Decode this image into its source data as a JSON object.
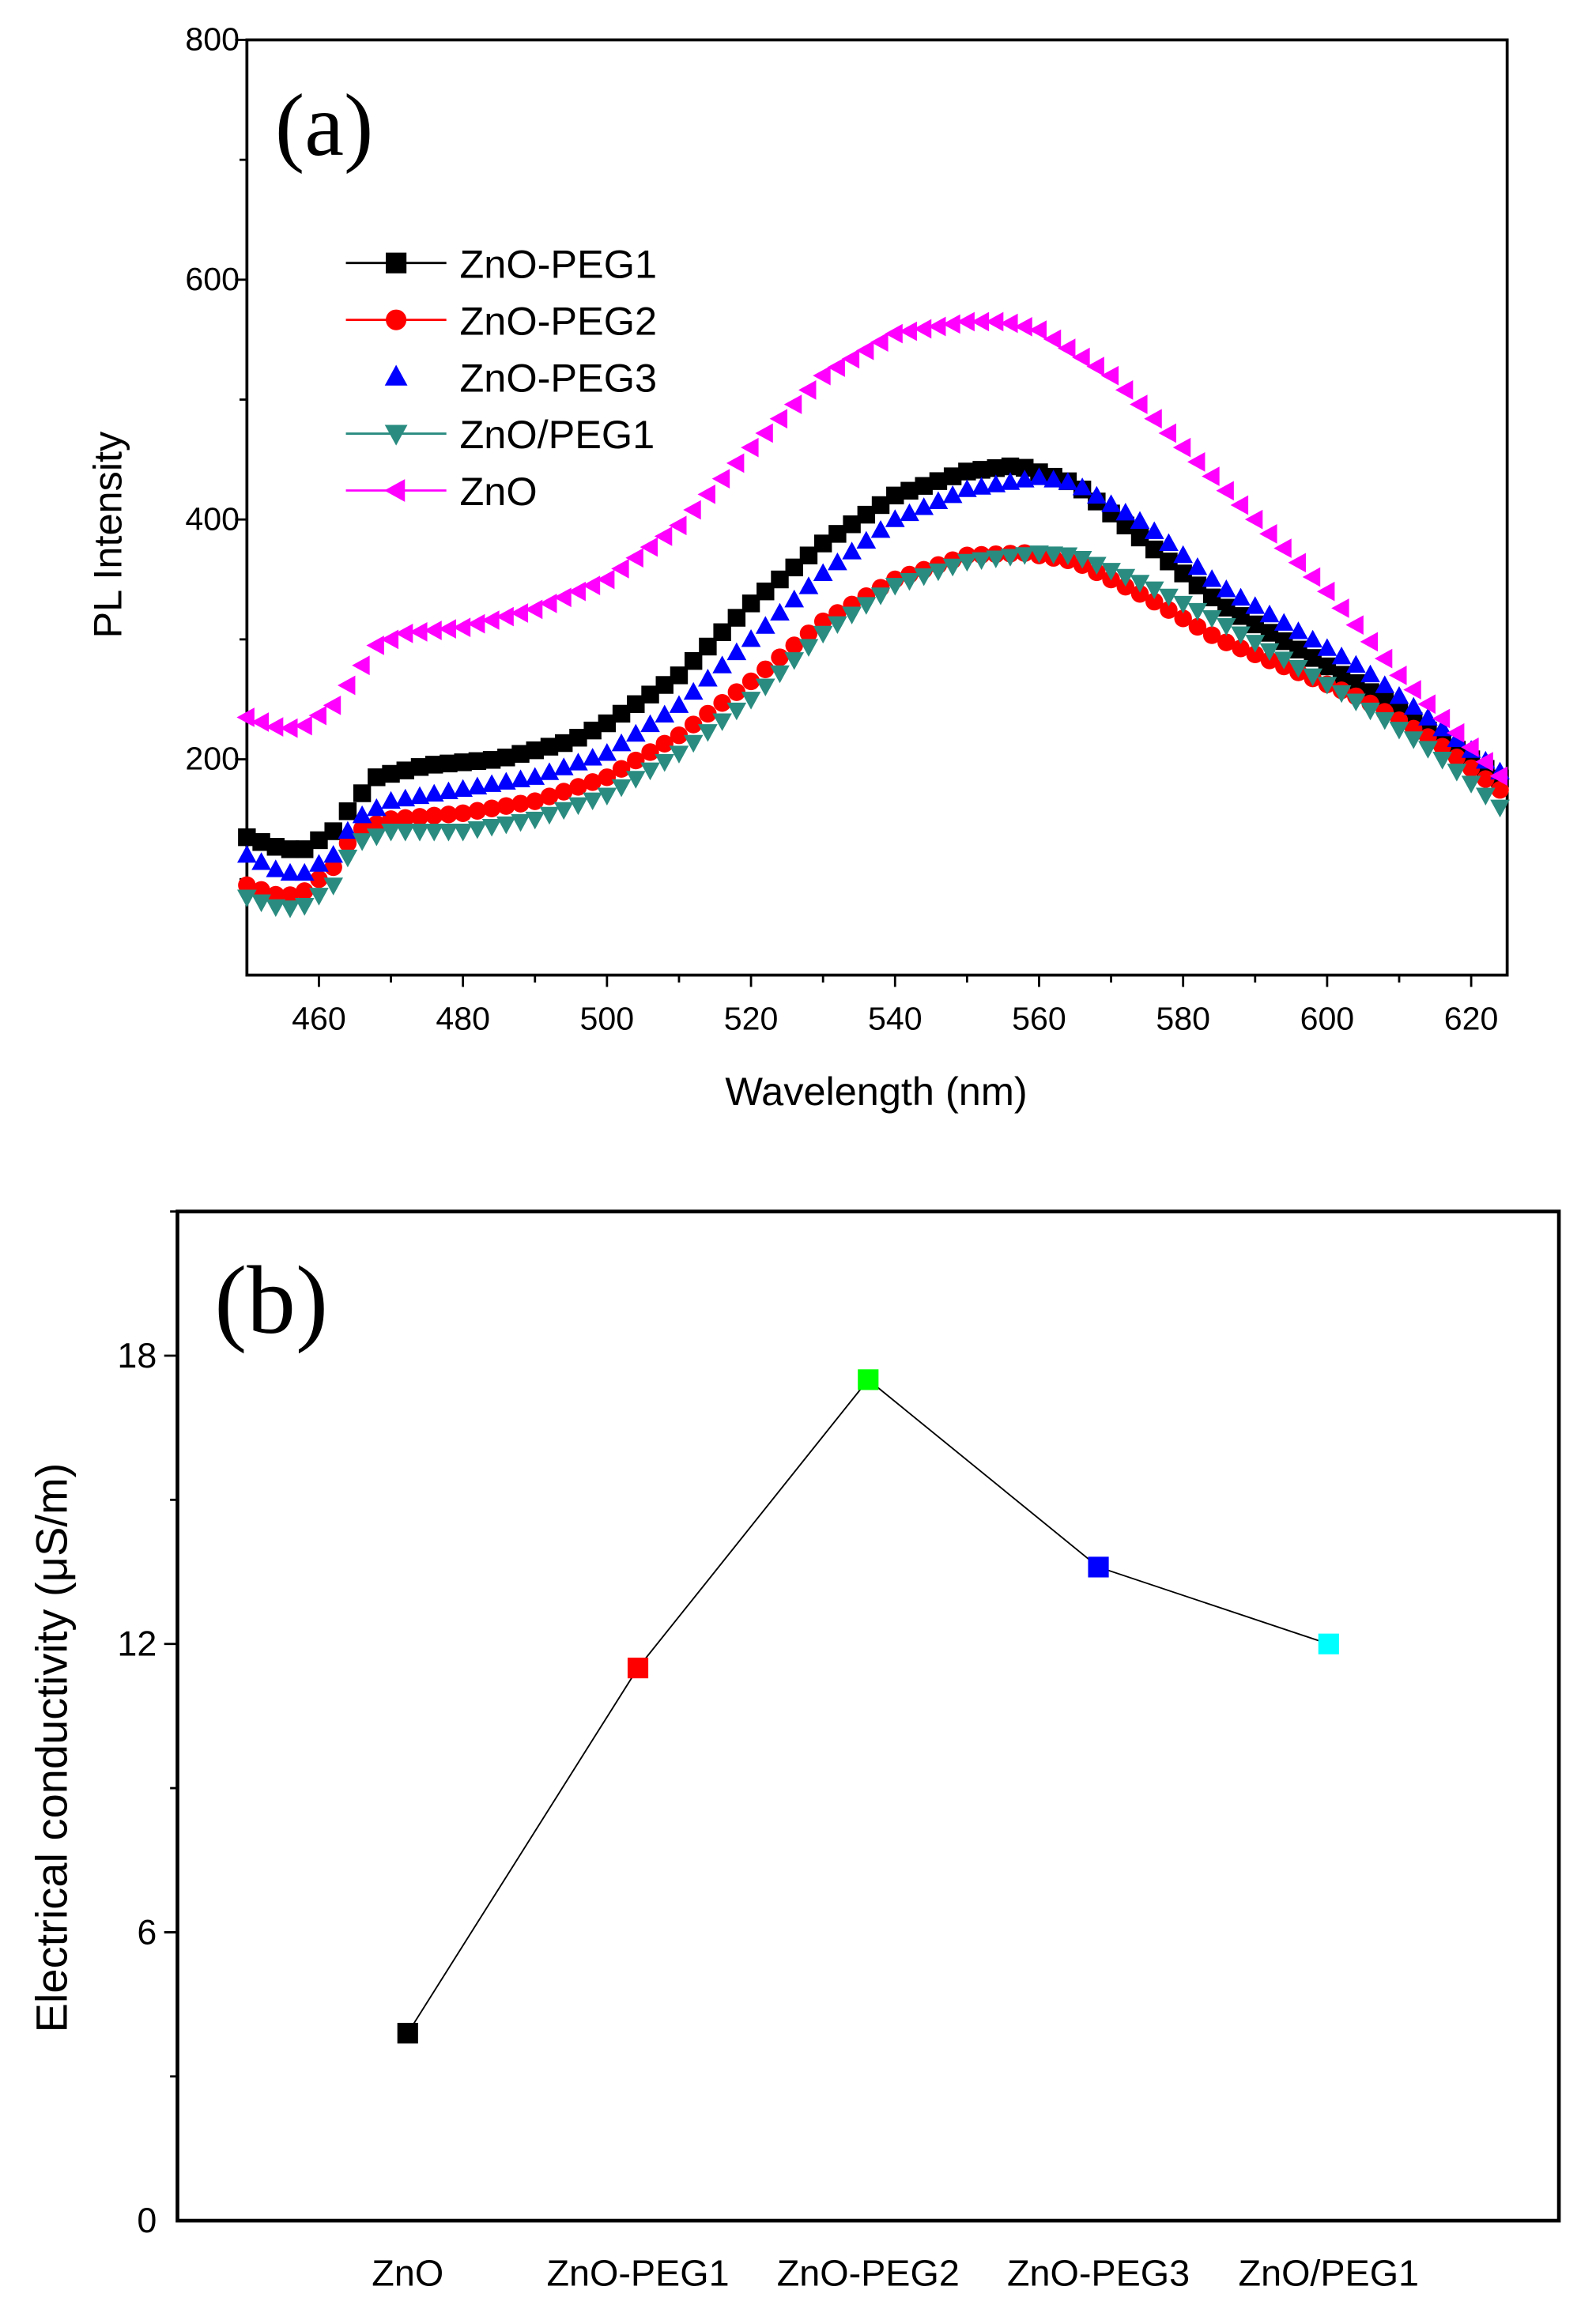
{
  "chart_data": [
    {
      "type": "scatter",
      "panel_label": "(a)",
      "xlabel": "Wavelength (nm)",
      "ylabel": "PL Intensity",
      "xlim": [
        450,
        625
      ],
      "ylim": [
        20,
        800
      ],
      "xticks": [
        460,
        480,
        500,
        520,
        540,
        560,
        580,
        600,
        620
      ],
      "yticks": [
        200,
        400,
        600,
        800
      ],
      "legend_position": "top-left",
      "series": [
        {
          "name": "ZnO-PEG1",
          "color": "#000000",
          "marker": "square",
          "legend_line": true,
          "x": [
            450,
            455,
            458,
            462,
            465,
            468,
            475,
            485,
            495,
            500,
            510,
            520,
            530,
            540,
            550,
            557,
            565,
            575,
            585,
            595,
            605,
            615,
            625
          ],
          "y": [
            135,
            125,
            125,
            140,
            165,
            185,
            195,
            200,
            215,
            230,
            270,
            330,
            380,
            420,
            440,
            445,
            430,
            380,
            330,
            295,
            260,
            220,
            180
          ]
        },
        {
          "name": "ZnO-PEG2",
          "color": "#ff0000",
          "marker": "circle",
          "legend_line": true,
          "x": [
            450,
            455,
            458,
            462,
            465,
            470,
            480,
            490,
            500,
            510,
            520,
            530,
            540,
            550,
            558,
            565,
            575,
            585,
            595,
            605,
            615,
            625
          ],
          "y": [
            95,
            85,
            90,
            110,
            140,
            150,
            155,
            165,
            185,
            220,
            265,
            315,
            350,
            370,
            372,
            365,
            335,
            300,
            275,
            250,
            215,
            170
          ]
        },
        {
          "name": "ZnO-PEG3",
          "color": "#0000ff",
          "marker": "triangle-up",
          "legend_line": false,
          "x": [
            450,
            455,
            458,
            462,
            465,
            470,
            480,
            490,
            500,
            510,
            520,
            530,
            540,
            550,
            560,
            565,
            575,
            585,
            595,
            605,
            615,
            625
          ],
          "y": [
            120,
            105,
            105,
            120,
            150,
            165,
            175,
            185,
            205,
            245,
            300,
            355,
            400,
            425,
            435,
            430,
            395,
            345,
            310,
            275,
            230,
            185
          ]
        },
        {
          "name": "ZnO/PEG1",
          "color": "#2a8c80",
          "marker": "triangle-down",
          "legend_line": true,
          "x": [
            450,
            455,
            458,
            462,
            465,
            470,
            480,
            490,
            500,
            510,
            520,
            530,
            540,
            550,
            560,
            565,
            575,
            585,
            595,
            605,
            615,
            625
          ],
          "y": [
            85,
            75,
            78,
            95,
            130,
            140,
            140,
            150,
            170,
            205,
            250,
            305,
            345,
            365,
            372,
            370,
            345,
            315,
            280,
            245,
            205,
            155
          ]
        },
        {
          "name": "ZnO",
          "color": "#ff00ff",
          "marker": "triangle-left",
          "legend_line": true,
          "x": [
            450,
            455,
            458,
            462,
            465,
            468,
            472,
            480,
            490,
            500,
            510,
            520,
            530,
            540,
            550,
            555,
            560,
            570,
            580,
            590,
            600,
            610,
            620,
            625
          ],
          "y": [
            235,
            225,
            228,
            245,
            270,
            295,
            305,
            310,
            325,
            350,
            395,
            460,
            520,
            555,
            565,
            565,
            558,
            520,
            460,
            400,
            340,
            270,
            210,
            180
          ]
        }
      ]
    },
    {
      "type": "line",
      "panel_label": "(b)",
      "xlabel": "",
      "ylabel": "Electrical conductivity (μS/m)",
      "categories": [
        "ZnO",
        "ZnO-PEG1",
        "ZnO-PEG2",
        "ZnO-PEG3",
        "ZnO/PEG1"
      ],
      "values": [
        3.9,
        11.5,
        17.5,
        13.6,
        12.0
      ],
      "colors": [
        "#000000",
        "#ff0000",
        "#00ff00",
        "#0000ff",
        "#00ffff"
      ],
      "ylim": [
        0,
        21
      ],
      "yticks": [
        0,
        6,
        12,
        18
      ]
    }
  ]
}
